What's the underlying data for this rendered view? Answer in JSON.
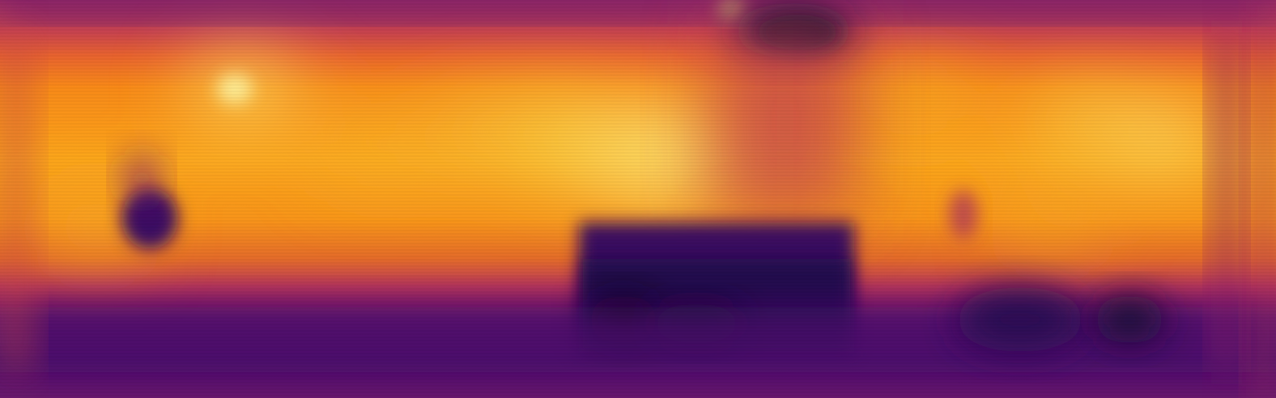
{
  "image": {
    "kind": "depth-or-intensity-heatmap",
    "colormap": "inferno",
    "colormap_stops": [
      "#000004",
      "#1b0c41",
      "#4a0c6b",
      "#781c6d",
      "#a52c60",
      "#cf4446",
      "#ed6925",
      "#fb9b06",
      "#f7d13d",
      "#fcffa4"
    ],
    "labels_visible": false
  }
}
